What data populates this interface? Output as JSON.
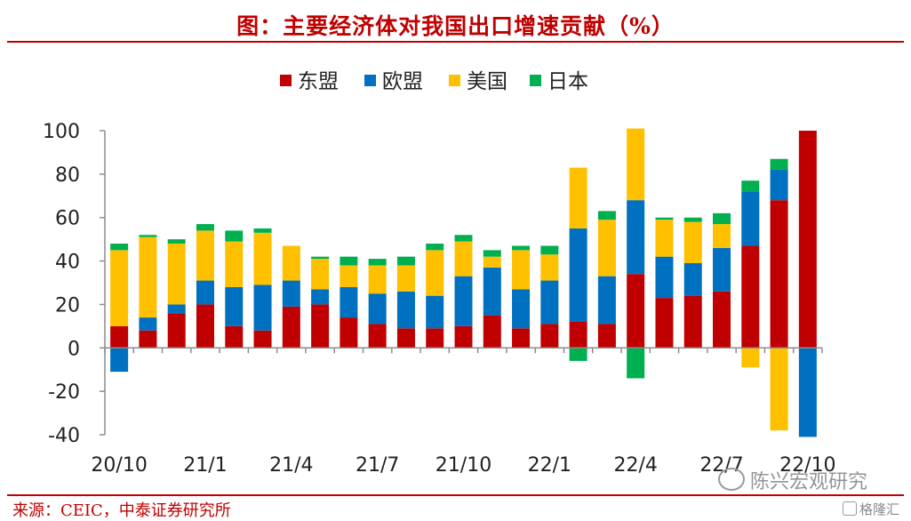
{
  "header": {
    "title": "图：主要经济体对我国出口增速贡献（%）"
  },
  "footer": {
    "source": "来源：CEIC，中泰证券研究所"
  },
  "watermark": {
    "account": "陈兴宏观研究",
    "brand": "格隆汇"
  },
  "chart_data": {
    "type": "bar",
    "stacked": true,
    "title": "图：主要经济体对我国出口增速贡献（%）",
    "categories": [
      "20/10",
      "20/11",
      "20/12",
      "21/1",
      "21/2",
      "21/3",
      "21/4",
      "21/5",
      "21/6",
      "21/7",
      "21/8",
      "21/9",
      "21/10",
      "21/11",
      "21/12",
      "22/1",
      "22/2",
      "22/3",
      "22/4",
      "22/5",
      "22/6",
      "22/7",
      "22/8",
      "22/9",
      "22/10"
    ],
    "tick_labels": [
      "20/10",
      "21/1",
      "21/4",
      "21/7",
      "21/10",
      "22/1",
      "22/4",
      "22/7",
      "22/10"
    ],
    "tick_indices": [
      0,
      3,
      6,
      9,
      12,
      15,
      18,
      21,
      24
    ],
    "series": [
      {
        "name": "东盟",
        "color": "#c00000",
        "values": [
          10,
          8,
          16,
          20,
          10,
          8,
          19,
          20,
          14,
          11,
          9,
          9,
          10,
          15,
          9,
          11,
          12,
          11,
          34,
          23,
          24,
          26,
          47,
          68,
          100
        ]
      },
      {
        "name": "欧盟",
        "color": "#0070c0",
        "values": [
          -11,
          6,
          4,
          11,
          18,
          21,
          12,
          7,
          14,
          14,
          17,
          15,
          23,
          22,
          18,
          20,
          43,
          22,
          34,
          19,
          15,
          20,
          25,
          14,
          -41
        ]
      },
      {
        "name": "美国",
        "color": "#ffc000",
        "values": [
          35,
          37,
          28,
          23,
          21,
          24,
          16,
          14,
          10,
          13,
          12,
          21,
          16,
          5,
          18,
          12,
          28,
          26,
          33,
          17,
          19,
          11,
          -9,
          -38,
          0
        ]
      },
      {
        "name": "日本",
        "color": "#00b050",
        "values": [
          3,
          1,
          2,
          3,
          5,
          2,
          0,
          1,
          4,
          3,
          4,
          3,
          3,
          3,
          2,
          4,
          -6,
          4,
          -14,
          1,
          2,
          5,
          5,
          5,
          0
        ]
      }
    ],
    "ylim": [
      -40,
      100
    ],
    "yticks": [
      -40,
      -20,
      0,
      20,
      40,
      60,
      80,
      100
    ],
    "xlabel": "",
    "ylabel": "",
    "legend": "top-center",
    "grid": false
  }
}
